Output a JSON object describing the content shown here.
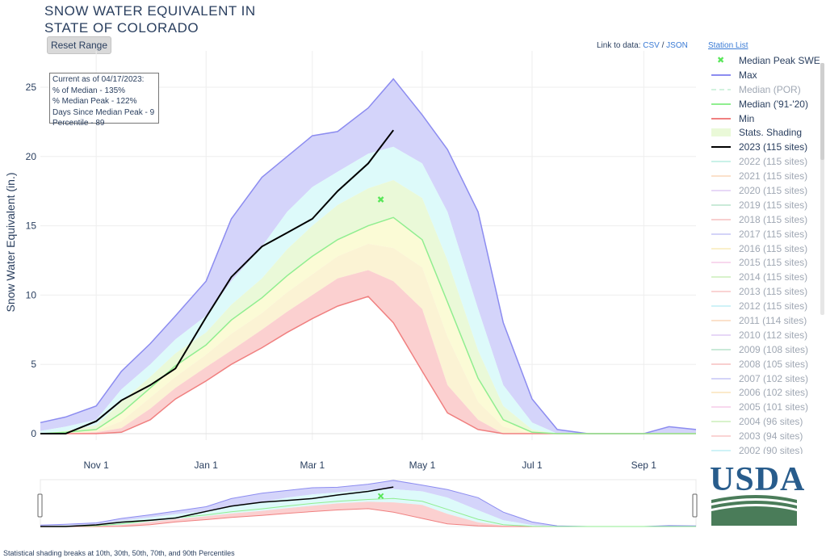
{
  "header": {
    "title_line1": "SNOW WATER EQUIVALENT IN",
    "title_line2": "STATE OF COLORADO",
    "reset_button": "Reset Range",
    "link_prefix": "Link to data:",
    "csv_link": "CSV",
    "link_separator": "/",
    "json_link": "JSON",
    "station_list": "Station List"
  },
  "info_box": {
    "lines": [
      "Current as of 04/17/2023:",
      "% of Median - 135%",
      "% Median Peak - 122%",
      "Days Since Median Peak - 9",
      "Percentile - 89"
    ]
  },
  "footnote": "Statistical shading breaks at 10th, 30th, 50th, 70th, and 90th Percentiles",
  "logo": {
    "text": "USDA",
    "blue": "#285c8c",
    "green": "#4a7c59"
  },
  "legend": [
    {
      "label": "Median Peak SWE",
      "type": "marker",
      "color": "#59e659",
      "active": true
    },
    {
      "label": "Max",
      "type": "line",
      "color": "#8c8cf0",
      "active": true
    },
    {
      "label": "Median (POR)",
      "type": "dash",
      "color": "#aee8c4",
      "active": false
    },
    {
      "label": "Median ('91-'20)",
      "type": "line",
      "color": "#90ee90",
      "active": true
    },
    {
      "label": "Min",
      "type": "line",
      "color": "#f08080",
      "active": true
    },
    {
      "label": "Stats. Shading",
      "type": "fill",
      "color": "#eaf9d8",
      "active": true
    },
    {
      "label": "2023 (115 sites)",
      "type": "line",
      "color": "#000000",
      "active": true
    },
    {
      "label": "2022 (115 sites)",
      "type": "line",
      "color": "#9ee6d6",
      "active": false
    },
    {
      "label": "2021 (115 sites)",
      "type": "line",
      "color": "#f7c9a0",
      "active": false
    },
    {
      "label": "2020 (115 sites)",
      "type": "line",
      "color": "#d3b8f0",
      "active": false
    },
    {
      "label": "2019 (115 sites)",
      "type": "line",
      "color": "#9ed9b8",
      "active": false
    },
    {
      "label": "2018 (115 sites)",
      "type": "line",
      "color": "#f2a8a8",
      "active": false
    },
    {
      "label": "2017 (115 sites)",
      "type": "line",
      "color": "#b0b0f2",
      "active": false
    },
    {
      "label": "2016 (115 sites)",
      "type": "line",
      "color": "#f5e3a0",
      "active": false
    },
    {
      "label": "2015 (115 sites)",
      "type": "line",
      "color": "#f2b8e0",
      "active": false
    },
    {
      "label": "2014 (115 sites)",
      "type": "line",
      "color": "#b8e8a0",
      "active": false
    },
    {
      "label": "2013 (115 sites)",
      "type": "line",
      "color": "#f5b0b0",
      "active": false
    },
    {
      "label": "2012 (115 sites)",
      "type": "line",
      "color": "#a8e8f0",
      "active": false
    },
    {
      "label": "2011 (114 sites)",
      "type": "line",
      "color": "#f7c9a0",
      "active": false
    },
    {
      "label": "2010 (112 sites)",
      "type": "line",
      "color": "#d3b8f0",
      "active": false
    },
    {
      "label": "2009 (108 sites)",
      "type": "line",
      "color": "#9ed9b8",
      "active": false
    },
    {
      "label": "2008 (105 sites)",
      "type": "line",
      "color": "#f2a8a8",
      "active": false
    },
    {
      "label": "2007 (102 sites)",
      "type": "line",
      "color": "#b0b0f2",
      "active": false
    },
    {
      "label": "2006 (102 sites)",
      "type": "line",
      "color": "#f7d9a0",
      "active": false
    },
    {
      "label": "2005 (101 sites)",
      "type": "line",
      "color": "#f2b8e0",
      "active": false
    },
    {
      "label": "2004 (96 sites)",
      "type": "line",
      "color": "#b8e8a0",
      "active": false
    },
    {
      "label": "2003 (94 sites)",
      "type": "line",
      "color": "#f5b0b0",
      "active": false
    },
    {
      "label": "2002 (90 sites)",
      "type": "line",
      "color": "#a8e8f0",
      "active": false
    }
  ],
  "chart_data": {
    "type": "area",
    "title": "SNOW WATER EQUIVALENT IN STATE OF COLORADO",
    "xlabel": "",
    "ylabel": "Snow Water Equivalent (in.)",
    "x_range": [
      "2022-10-01",
      "2023-09-30"
    ],
    "x_ticks": [
      "Nov 1",
      "Jan 1",
      "Mar 1",
      "May 1",
      "Jul 1",
      "Sep 1"
    ],
    "x_tick_dates": [
      "2022-11-01",
      "2023-01-01",
      "2023-03-01",
      "2023-05-01",
      "2023-07-01",
      "2023-09-01"
    ],
    "ylim": [
      0,
      26.5
    ],
    "y_ticks": [
      0,
      5,
      10,
      15,
      20,
      25
    ],
    "grid": true,
    "legend_position": "right",
    "colors": {
      "max": "#8c8cf0",
      "max_fill": "#d4d4fa",
      "p90_fill": "#ddfafa",
      "p70_fill": "#eaf9d8",
      "p50_fill": "#fbfbd6",
      "p30_fill": "#fbf3d4",
      "p10_fill": "#fbd0d0",
      "median": "#90ee90",
      "min": "#f08080",
      "current": "#000000",
      "marker": "#59e659"
    },
    "dates": [
      "2022-10-01",
      "2022-10-15",
      "2022-11-01",
      "2022-11-15",
      "2022-12-01",
      "2022-12-15",
      "2023-01-01",
      "2023-01-15",
      "2023-02-01",
      "2023-02-15",
      "2023-03-01",
      "2023-03-15",
      "2023-04-01",
      "2023-04-15",
      "2023-05-01",
      "2023-05-15",
      "2023-06-01",
      "2023-06-15",
      "2023-07-01",
      "2023-07-15",
      "2023-08-01",
      "2023-09-01",
      "2023-09-15",
      "2023-09-30"
    ],
    "series": [
      {
        "name": "Max",
        "values": [
          0.8,
          1.2,
          2.0,
          4.5,
          6.5,
          8.5,
          11.0,
          15.5,
          18.5,
          20.0,
          21.5,
          21.8,
          23.5,
          25.6,
          23.0,
          20.5,
          16.0,
          8.0,
          2.5,
          0.3,
          0.0,
          0.0,
          0.5,
          0.3
        ]
      },
      {
        "name": "Min",
        "values": [
          0.0,
          0.0,
          0.0,
          0.1,
          1.0,
          2.5,
          3.8,
          5.0,
          6.2,
          7.3,
          8.3,
          9.2,
          9.9,
          8.0,
          4.5,
          1.5,
          0.3,
          0.0,
          0.0,
          0.0,
          0.0,
          0.0,
          0.0,
          0.0
        ]
      },
      {
        "name": "Median ('91-'20)",
        "values": [
          0.0,
          0.1,
          0.3,
          1.5,
          3.3,
          4.9,
          6.4,
          8.2,
          9.8,
          11.4,
          12.8,
          14.0,
          15.0,
          15.6,
          14.0,
          9.5,
          4.0,
          1.0,
          0.1,
          0.0,
          0.0,
          0.0,
          0.0,
          0.0
        ]
      },
      {
        "name": "2023 (115 sites)",
        "values": [
          0.0,
          0.0,
          0.9,
          2.4,
          3.5,
          4.7,
          8.4,
          11.3,
          13.5,
          14.5,
          15.5,
          17.5,
          19.5,
          21.9,
          null,
          null,
          null,
          null,
          null,
          null,
          null,
          null,
          null,
          null
        ]
      }
    ],
    "percentile_bands": {
      "p10": [
        0.0,
        0.0,
        0.1,
        0.4,
        1.8,
        3.3,
        4.8,
        6.0,
        7.5,
        8.8,
        10.0,
        11.2,
        11.8,
        11.0,
        9.0,
        3.5,
        1.0,
        0.0,
        0.0,
        0.0,
        0.0,
        0.0,
        0.0,
        0.0
      ],
      "p30": [
        0.0,
        0.0,
        0.2,
        0.9,
        2.6,
        4.1,
        5.7,
        7.2,
        8.7,
        10.2,
        11.5,
        12.8,
        13.7,
        13.4,
        12.0,
        7.0,
        2.3,
        0.5,
        0.0,
        0.0,
        0.0,
        0.0,
        0.0,
        0.0
      ],
      "p70": [
        0.0,
        0.2,
        0.6,
        2.3,
        4.1,
        5.8,
        7.3,
        9.3,
        11.2,
        13.3,
        15.0,
        16.5,
        17.7,
        18.3,
        17.0,
        12.5,
        6.0,
        2.0,
        0.3,
        0.0,
        0.0,
        0.0,
        0.0,
        0.0
      ],
      "p90": [
        0.2,
        0.5,
        1.0,
        3.2,
        5.0,
        6.8,
        8.5,
        11.0,
        13.5,
        16.0,
        17.8,
        18.9,
        20.2,
        20.7,
        19.5,
        16.0,
        9.0,
        3.5,
        0.8,
        0.0,
        0.0,
        0.0,
        0.0,
        0.0
      ]
    },
    "median_peak_swe": {
      "date": "2023-04-08",
      "value": 16.9
    }
  }
}
